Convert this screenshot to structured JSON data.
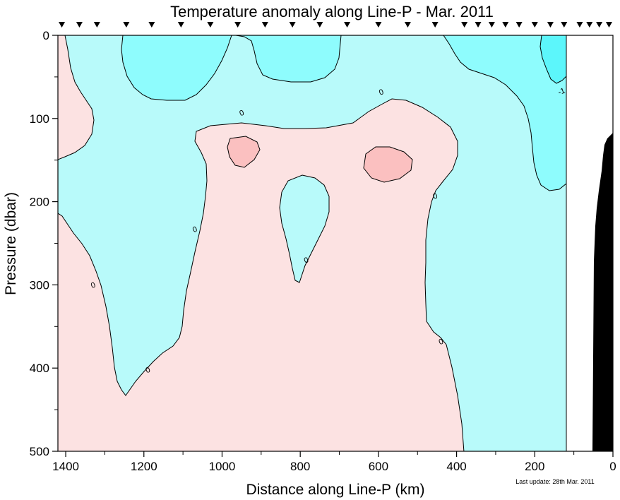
{
  "chart_data": {
    "type": "contour",
    "title": "Temperature anomaly along Line-P - Mar. 2011",
    "xlabel": "Distance along Line-P (km)",
    "ylabel": "Pressure (dbar)",
    "xlim": [
      1420,
      0
    ],
    "ylim": [
      0,
      500
    ],
    "x_ticks": [
      1400,
      1200,
      1000,
      800,
      600,
      400,
      200,
      0
    ],
    "y_ticks": [
      0,
      100,
      200,
      300,
      400,
      500
    ],
    "station_positions_km": [
      1410,
      1365,
      1320,
      1245,
      1180,
      1105,
      1030,
      960,
      890,
      820,
      750,
      680,
      600,
      525,
      455,
      380,
      345,
      310,
      275,
      240,
      200,
      160,
      125,
      85,
      60,
      35,
      10
    ],
    "contour_labels": [
      "0",
      "0",
      "0",
      "0",
      "0",
      "0",
      "0",
      "0",
      "-1"
    ],
    "regions": [
      {
        "name": "negative anomaly (0 to -1)",
        "color": "#b8fafa"
      },
      {
        "name": "strong negative anomaly (< -1)",
        "color": "#8efcfd"
      },
      {
        "name": "positive anomaly (0 to 1)",
        "color": "#fce2e2"
      },
      {
        "name": "strong positive anomaly (> 1)",
        "color": "#fbc0c0"
      },
      {
        "name": "bathymetry",
        "color": "#000000"
      }
    ],
    "footnote": "Last update: 28th Mar. 2011"
  }
}
